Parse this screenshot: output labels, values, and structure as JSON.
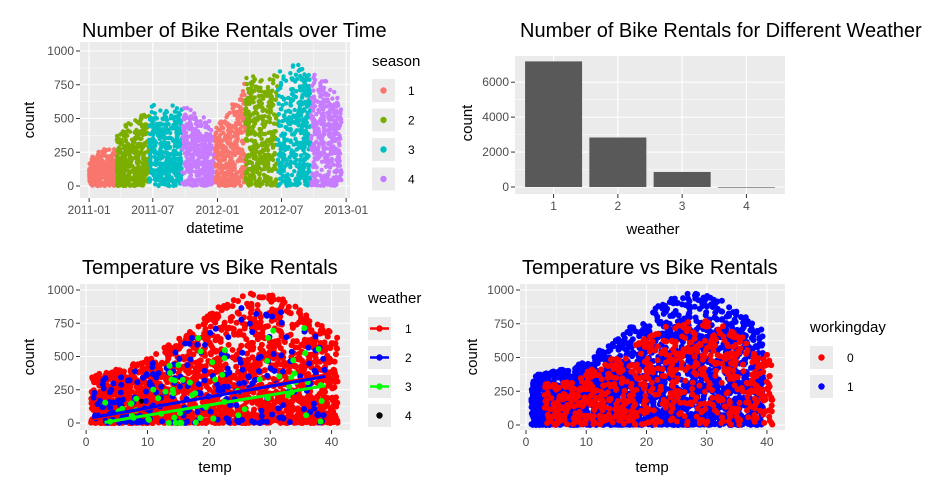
{
  "colors": {
    "panel_bg": "#ebebeb",
    "grid_major": "#ffffff",
    "season_1": "#f8766d",
    "season_2": "#7cae00",
    "season_3": "#00bfc4",
    "season_4": "#c77cff",
    "bar_fill": "#595959",
    "weather_1": "#ff0000",
    "weather_2": "#0000ff",
    "weather_3": "#00ff00",
    "weather_4": "#000000",
    "workingday_0": "#ff0000",
    "workingday_1": "#0000ff"
  },
  "chart_data": [
    {
      "type": "scatter",
      "title": "Number of Bike Rentals over Time",
      "xlabel": "datetime",
      "ylabel": "count",
      "x_ticks": [
        "2011-01",
        "2011-07",
        "2012-01",
        "2012-07",
        "2013-01"
      ],
      "y_ticks": [
        0,
        250,
        500,
        750,
        1000
      ],
      "ylim": [
        0,
        1000
      ],
      "legend": {
        "title": "season",
        "position": "right",
        "entries": [
          "1",
          "2",
          "3",
          "4"
        ]
      },
      "series": [
        {
          "name": "1",
          "segments": [
            {
              "x_start": "2011-01-01",
              "x_end": "2011-03-20",
              "y_max_start": 220,
              "y_max_end": 330
            },
            {
              "x_start": "2011-12-21",
              "x_end": "2012-03-20",
              "y_max_start": 440,
              "y_max_end": 800
            }
          ]
        },
        {
          "name": "2",
          "segments": [
            {
              "x_start": "2011-03-21",
              "x_end": "2011-06-20",
              "y_max_start": 400,
              "y_max_end": 630
            },
            {
              "x_start": "2012-03-21",
              "x_end": "2012-06-20",
              "y_max_start": 820,
              "y_max_end": 880
            }
          ]
        },
        {
          "name": "3",
          "segments": [
            {
              "x_start": "2011-06-21",
              "x_end": "2011-09-22",
              "y_max_start": 600,
              "y_max_end": 630
            },
            {
              "x_start": "2012-06-21",
              "x_end": "2012-09-22",
              "y_max_start": 860,
              "y_max_end": 977
            }
          ]
        },
        {
          "name": "4",
          "segments": [
            {
              "x_start": "2011-09-23",
              "x_end": "2011-12-20",
              "y_max_start": 620,
              "y_max_end": 480
            },
            {
              "x_start": "2012-09-23",
              "x_end": "2012-12-19",
              "y_max_start": 950,
              "y_max_end": 700
            }
          ]
        }
      ]
    },
    {
      "type": "bar",
      "title": "Number of Bike Rentals for Different Weather",
      "xlabel": "weather",
      "ylabel": "count",
      "categories": [
        "1",
        "2",
        "3",
        "4"
      ],
      "values": [
        7192,
        2834,
        859,
        1
      ],
      "y_ticks": [
        0,
        2000,
        4000,
        6000
      ],
      "ylim": [
        0,
        7500
      ]
    },
    {
      "type": "scatter",
      "title": "Temperature vs Bike Rentals",
      "xlabel": "temp",
      "ylabel": "count",
      "x_ticks": [
        0,
        10,
        20,
        30,
        40
      ],
      "y_ticks": [
        0,
        250,
        500,
        750,
        1000
      ],
      "xlim": [
        -1,
        43
      ],
      "ylim": [
        0,
        1000
      ],
      "legend": {
        "title": "weather",
        "position": "right",
        "entries": [
          "1",
          "2",
          "3",
          "4"
        ]
      },
      "trend_lines": [
        {
          "name": "1",
          "x": [
            1,
            41
          ],
          "y": [
            30,
            380
          ]
        },
        {
          "name": "2",
          "x": [
            1,
            39
          ],
          "y": [
            40,
            350
          ]
        },
        {
          "name": "3",
          "x": [
            3,
            39
          ],
          "y": [
            5,
            280
          ]
        }
      ],
      "point_clouds": [
        {
          "name": "1",
          "x_range": [
            0.8,
            41
          ],
          "y_max": 977
        },
        {
          "name": "2",
          "x_range": [
            1,
            39
          ],
          "y_max": 890
        },
        {
          "name": "3",
          "x_range": [
            3,
            39
          ],
          "y_max": 890
        },
        {
          "name": "4",
          "points": [
            [
              9,
              164
            ]
          ]
        }
      ]
    },
    {
      "type": "scatter",
      "title": "Temperature vs Bike Rentals",
      "xlabel": "temp",
      "ylabel": "count",
      "x_ticks": [
        0,
        10,
        20,
        30,
        40
      ],
      "y_ticks": [
        0,
        250,
        500,
        750,
        1000
      ],
      "xlim": [
        -1,
        43
      ],
      "ylim": [
        0,
        1000
      ],
      "legend": {
        "title": "workingday",
        "position": "right",
        "entries": [
          "0",
          "1"
        ]
      },
      "point_clouds": [
        {
          "name": "1",
          "x_range": [
            0.8,
            39.4
          ],
          "y_max": 977
        },
        {
          "name": "0",
          "x_range": [
            3,
            41
          ],
          "y_max": 780
        }
      ]
    }
  ]
}
